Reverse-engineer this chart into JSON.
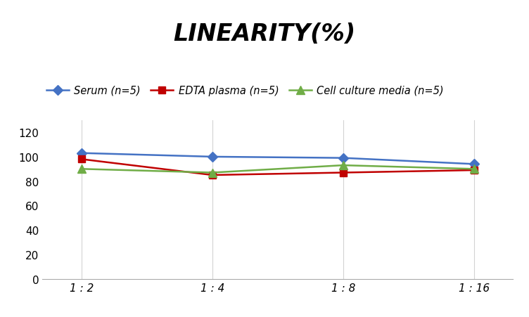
{
  "title": "LINEARITY(%)",
  "x_labels": [
    "1 : 2",
    "1 : 4",
    "1 : 8",
    "1 : 16"
  ],
  "x_positions": [
    0,
    1,
    2,
    3
  ],
  "series": [
    {
      "label": "Serum (n=5)",
      "values": [
        103,
        100,
        99,
        94
      ],
      "color": "#4472C4",
      "marker": "D",
      "marker_size": 7,
      "linewidth": 1.8
    },
    {
      "label": "EDTA plasma (n=5)",
      "values": [
        98,
        85,
        87,
        89
      ],
      "color": "#C00000",
      "marker": "s",
      "marker_size": 7,
      "linewidth": 1.8
    },
    {
      "label": "Cell culture media (n=5)",
      "values": [
        90,
        87,
        93,
        90
      ],
      "color": "#70AD47",
      "marker": "^",
      "marker_size": 8,
      "linewidth": 1.8
    }
  ],
  "ylim": [
    0,
    130
  ],
  "yticks": [
    0,
    20,
    40,
    60,
    80,
    100,
    120
  ],
  "background_color": "#FFFFFF",
  "grid_color": "#D3D3D3",
  "title_fontsize": 24,
  "legend_fontsize": 10.5,
  "tick_fontsize": 11
}
